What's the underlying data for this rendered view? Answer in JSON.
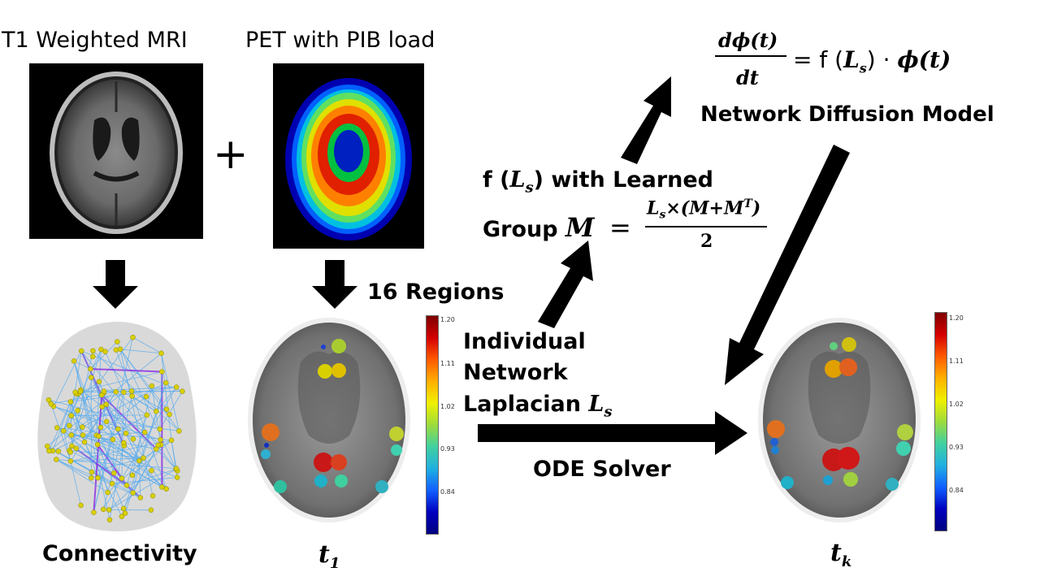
{
  "labels": {
    "t1_mri": "T1 Weighted MRI",
    "pet": "PET with PIB load",
    "plus": "+",
    "connectivity": "Connectivity",
    "regions": "16 Regions",
    "individual_1": "Individual",
    "individual_2": "Network",
    "individual_3": "Laplacian",
    "ode_solver": "ODE Solver",
    "learned_group_1": "with Learned",
    "group": "Group",
    "network_diffusion_model": "Network Diffusion Model",
    "t1_label": "t",
    "t1_sub": "1",
    "tk_label": "t",
    "tk_sub": "k"
  },
  "math": {
    "f": "f",
    "Ls": "L",
    "s": "s",
    "M": "M",
    "equals": "=",
    "fraction_num": "L",
    "fraction_times": "×(M+M",
    "fraction_T": "T",
    "fraction_close": ")",
    "fraction_den": "2",
    "ode_num": "dϕ(t)",
    "ode_den": "dt",
    "ode_rhs_dot": "·",
    "ode_rhs_phi": "ϕ(t)"
  },
  "colorbar_ticks": [
    "1.20",
    "1.11",
    "1.02",
    "0.93",
    "0.84"
  ],
  "colors": {
    "arrow": "#000000",
    "mesh_background": "#d9d9d9",
    "node": "#d8d000",
    "edge": "#55aaee"
  }
}
